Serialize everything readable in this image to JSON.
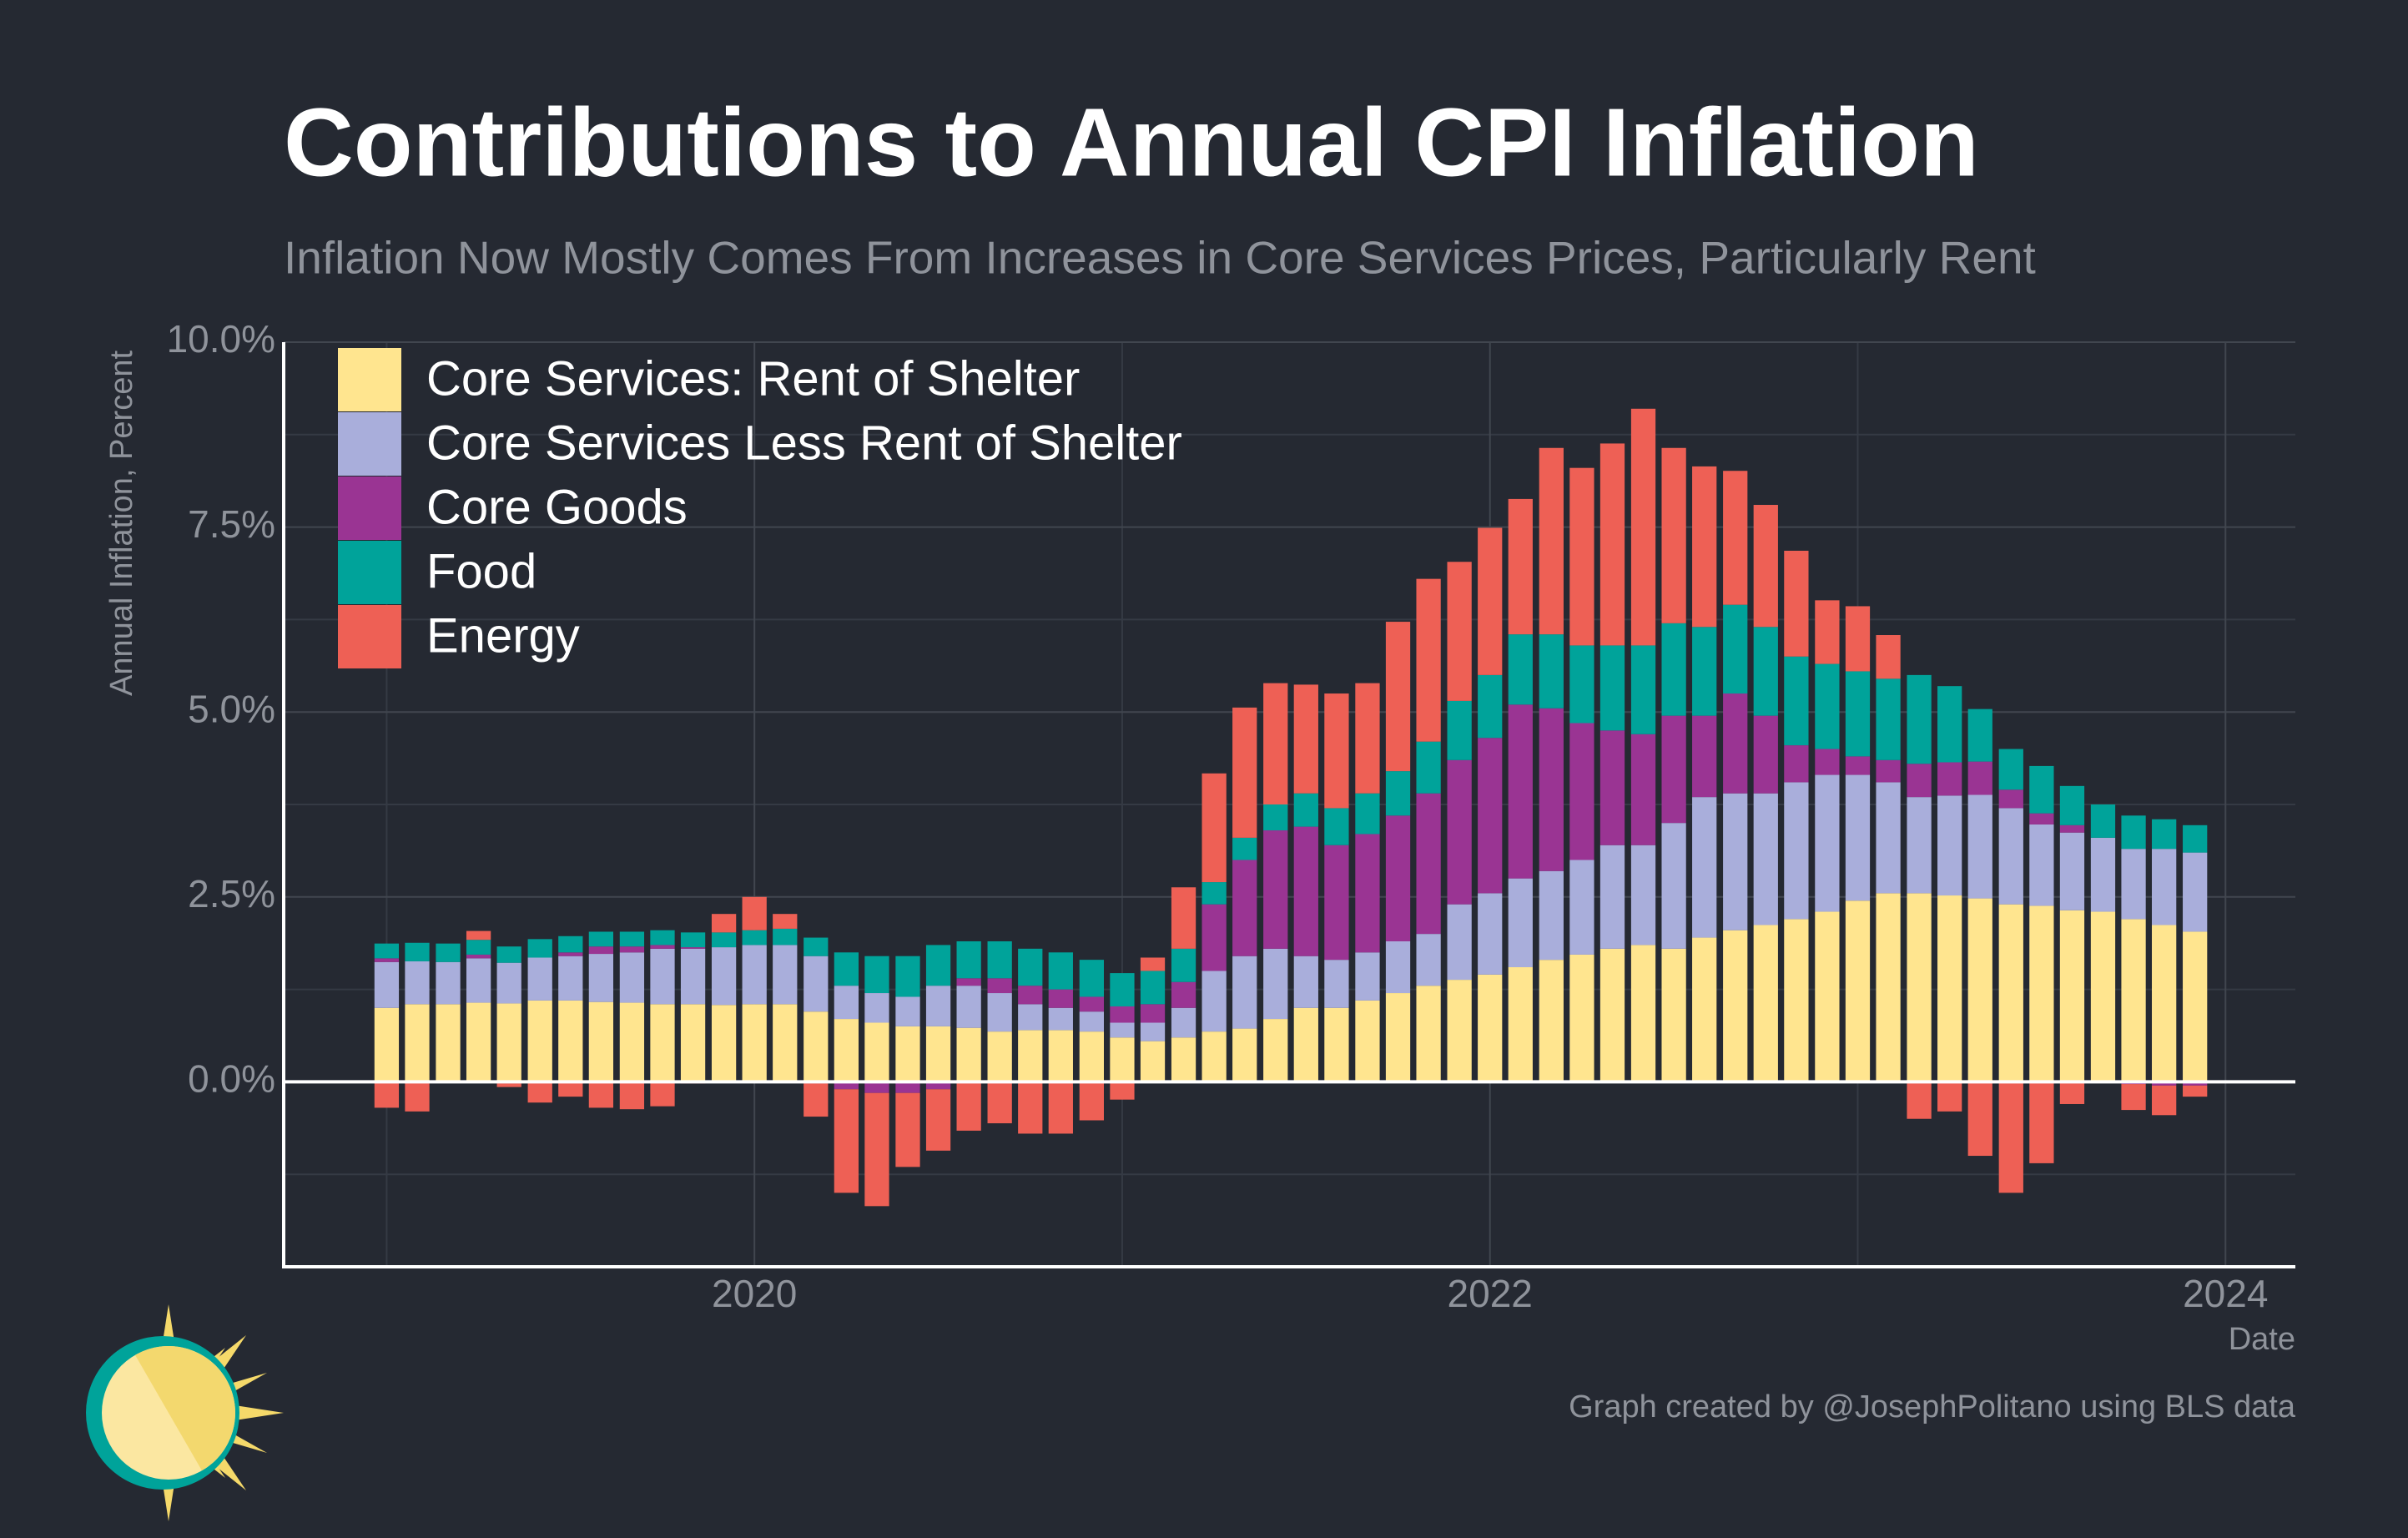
{
  "chart_data": {
    "type": "stacked-bar",
    "title": "Contributions to Annual CPI Inflation",
    "subtitle": "Inflation Now Mostly Comes From Increases in Core Services Prices, Particularly Rent",
    "y_label": "Annual Inflation, Percent",
    "x_label": "Date",
    "credit": "Graph created by @JosephPolitano using BLS data",
    "x": [
      2019,
      2019.083,
      2019.167,
      2019.25,
      2019.333,
      2019.417,
      2019.5,
      2019.583,
      2019.667,
      2019.75,
      2019.833,
      2019.917,
      2020,
      2020.083,
      2020.167,
      2020.25,
      2020.333,
      2020.417,
      2020.5,
      2020.583,
      2020.667,
      2020.75,
      2020.833,
      2020.917,
      2021,
      2021.083,
      2021.167,
      2021.25,
      2021.333,
      2021.417,
      2021.5,
      2021.583,
      2021.667,
      2021.75,
      2021.833,
      2021.917,
      2022,
      2022.083,
      2022.167,
      2022.25,
      2022.333,
      2022.417,
      2022.5,
      2022.583,
      2022.667,
      2022.75,
      2022.833,
      2022.917,
      2023,
      2023.083,
      2023.167,
      2023.25,
      2023.333,
      2023.417,
      2023.5,
      2023.583,
      2023.667,
      2023.75,
      2023.833,
      2023.917
    ],
    "series": [
      {
        "name": "Core Services: Rent of Shelter",
        "color": "#ffe58f",
        "values": [
          1.0,
          1.05,
          1.05,
          1.07,
          1.06,
          1.1,
          1.1,
          1.08,
          1.07,
          1.05,
          1.05,
          1.04,
          1.05,
          1.05,
          0.95,
          0.85,
          0.8,
          0.75,
          0.75,
          0.73,
          0.68,
          0.7,
          0.7,
          0.68,
          0.6,
          0.55,
          0.6,
          0.68,
          0.72,
          0.85,
          1.0,
          1.0,
          1.1,
          1.2,
          1.3,
          1.38,
          1.45,
          1.55,
          1.65,
          1.72,
          1.8,
          1.85,
          1.8,
          1.95,
          2.05,
          2.12,
          2.2,
          2.3,
          2.45,
          2.55,
          2.55,
          2.52,
          2.48,
          2.4,
          2.38,
          2.32,
          2.3,
          2.2,
          2.12,
          2.03
        ]
      },
      {
        "name": "Core Services Less Rent of Shelter",
        "color": "#a9aedb",
        "values": [
          0.62,
          0.58,
          0.57,
          0.6,
          0.55,
          0.58,
          0.6,
          0.65,
          0.68,
          0.75,
          0.75,
          0.78,
          0.8,
          0.8,
          0.75,
          0.45,
          0.4,
          0.4,
          0.55,
          0.57,
          0.52,
          0.35,
          0.3,
          0.27,
          0.2,
          0.25,
          0.4,
          0.82,
          0.98,
          0.95,
          0.7,
          0.65,
          0.65,
          0.7,
          0.7,
          1.02,
          1.1,
          1.2,
          1.2,
          1.28,
          1.4,
          1.35,
          1.7,
          1.9,
          1.85,
          1.78,
          1.85,
          1.85,
          1.7,
          1.5,
          1.3,
          1.35,
          1.4,
          1.3,
          1.1,
          1.05,
          1.0,
          0.95,
          1.03,
          1.07
        ]
      },
      {
        "name": "Core Goods",
        "color": "#9a3493",
        "values": [
          0.05,
          0,
          0,
          0.05,
          -0.02,
          0,
          0.05,
          0.1,
          0.08,
          0.05,
          0.02,
          0,
          0,
          0,
          -0.02,
          -0.1,
          -0.15,
          -0.15,
          -0.1,
          0.1,
          0.2,
          0.25,
          0.25,
          0.2,
          0.22,
          0.25,
          0.35,
          0.9,
          1.3,
          1.6,
          1.75,
          1.55,
          1.6,
          1.7,
          1.9,
          1.95,
          2.1,
          2.35,
          2.2,
          1.85,
          1.55,
          1.5,
          1.45,
          1.1,
          1.35,
          1.05,
          0.5,
          0.35,
          0.25,
          0.3,
          0.45,
          0.45,
          0.45,
          0.25,
          0.15,
          0.1,
          0,
          -0.03,
          -0.05,
          -0.05
        ]
      },
      {
        "name": "Food",
        "color": "#00a39a",
        "values": [
          0.2,
          0.25,
          0.25,
          0.2,
          0.22,
          0.25,
          0.22,
          0.2,
          0.2,
          0.2,
          0.2,
          0.2,
          0.2,
          0.22,
          0.25,
          0.45,
          0.5,
          0.55,
          0.55,
          0.5,
          0.5,
          0.5,
          0.5,
          0.5,
          0.45,
          0.45,
          0.45,
          0.3,
          0.3,
          0.35,
          0.45,
          0.5,
          0.55,
          0.6,
          0.7,
          0.8,
          0.85,
          0.95,
          1.0,
          1.05,
          1.15,
          1.2,
          1.25,
          1.2,
          1.2,
          1.2,
          1.2,
          1.15,
          1.15,
          1.1,
          1.2,
          1.03,
          0.71,
          0.55,
          0.64,
          0.53,
          0.45,
          0.45,
          0.4,
          0.37
        ]
      },
      {
        "name": "Energy",
        "color": "#ee6055",
        "values": [
          -0.35,
          -0.4,
          0.0,
          0.12,
          -0.05,
          -0.28,
          -0.2,
          -0.35,
          -0.37,
          -0.33,
          -0.02,
          0.25,
          0.45,
          0.2,
          -0.45,
          -1.4,
          -1.53,
          -1.0,
          -0.83,
          -0.66,
          -0.56,
          -0.7,
          -0.7,
          -0.52,
          -0.24,
          0.18,
          0.83,
          1.47,
          1.76,
          1.64,
          1.47,
          1.55,
          1.49,
          2.02,
          2.2,
          1.88,
          1.99,
          1.83,
          2.52,
          2.4,
          2.73,
          3.2,
          2.37,
          2.17,
          1.81,
          1.65,
          1.43,
          0.86,
          0.88,
          0.59,
          -0.5,
          -0.4,
          -1.0,
          -1.5,
          -1.1,
          -0.3,
          0,
          -0.35,
          -0.4,
          -0.15
        ]
      }
    ],
    "xlim": [
      2018.72,
      2024.19
    ],
    "xticks": [
      2020,
      2022,
      2024
    ],
    "xminorticks": [
      2019,
      2021,
      2023
    ],
    "ylim": [
      -2.5,
      10
    ],
    "yticks": [
      {
        "value": 0,
        "label": "0.0%"
      },
      {
        "value": 2.5,
        "label": "2.5%"
      },
      {
        "value": 5,
        "label": "5.0%"
      },
      {
        "value": 7.5,
        "label": "7.5%"
      },
      {
        "value": 10,
        "label": "10.0%"
      }
    ],
    "yminorticks": [
      -1.25,
      1.25,
      3.75,
      6.25,
      8.75
    ],
    "grid": true,
    "legend": "top-left"
  }
}
